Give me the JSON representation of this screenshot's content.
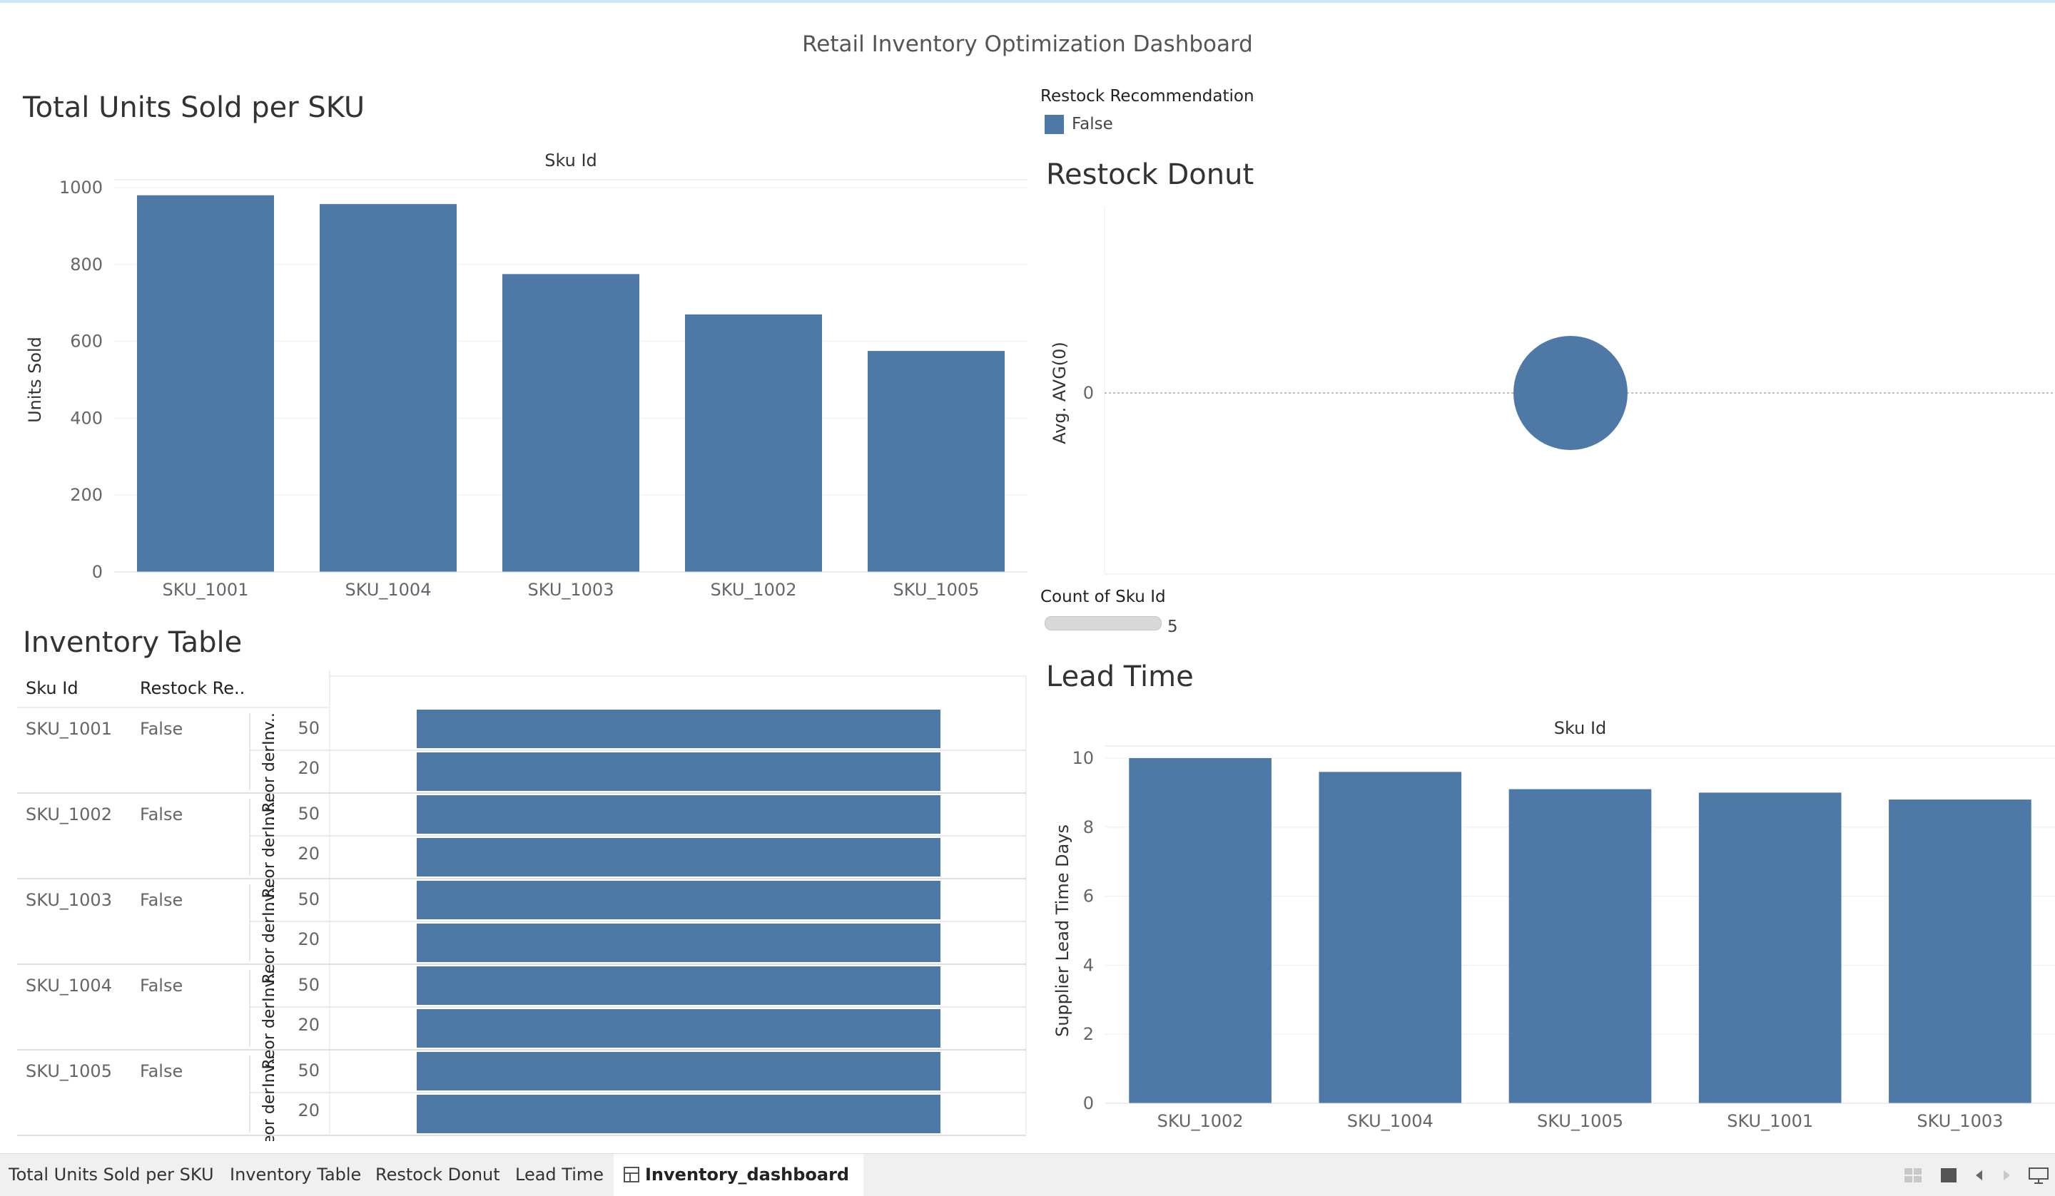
{
  "dashboard": {
    "title": "Retail Inventory Optimization Dashboard"
  },
  "sheets": {
    "units": {
      "title": "Total Units Sold per SKU"
    },
    "donut": {
      "title": "Restock Donut"
    },
    "table": {
      "title": "Inventory Table"
    },
    "lead": {
      "title": "Lead Time"
    }
  },
  "legend": {
    "color_title": "Restock Recommendation",
    "color_item": "False",
    "color_hex": "#4e79a7",
    "size_title": "Count of Sku Id",
    "size_value": "5"
  },
  "chart_data": [
    {
      "type": "bar",
      "title": "Total Units Sold per SKU",
      "xlabel": "Sku Id",
      "ylabel": "Units Sold",
      "categories": [
        "SKU_1001",
        "SKU_1004",
        "SKU_1003",
        "SKU_1002",
        "SKU_1005"
      ],
      "values": [
        980,
        957,
        775,
        670,
        575
      ],
      "ylim": [
        0,
        1000
      ],
      "yticks": [
        "0",
        "200",
        "400",
        "600",
        "800",
        "1000"
      ],
      "grid": true
    },
    {
      "type": "scatter",
      "title": "Restock Donut",
      "ylabel": "Avg. AVG(0)",
      "yticks": [
        "0"
      ],
      "points": [
        {
          "y": 0,
          "count": 5
        }
      ],
      "grid": true
    },
    {
      "type": "bar",
      "title": "Lead Time",
      "xlabel": "Sku Id",
      "ylabel": "Supplier Lead Time Days",
      "categories": [
        "SKU_1002",
        "SKU_1004",
        "SKU_1005",
        "SKU_1001",
        "SKU_1003"
      ],
      "values": [
        10,
        9.6,
        9.1,
        9.0,
        8.8
      ],
      "ylim": [
        0,
        10
      ],
      "yticks": [
        "0",
        "2",
        "4",
        "6",
        "8",
        "10"
      ],
      "grid": true
    }
  ],
  "table": {
    "headers": [
      "Sku Id",
      "Restock Re.."
    ],
    "measure_labels": [
      "Inv..",
      "Reor der .."
    ],
    "rows": [
      {
        "sku": "SKU_1001",
        "restock": "False",
        "inv": "50",
        "reorder": "20"
      },
      {
        "sku": "SKU_1002",
        "restock": "False",
        "inv": "50",
        "reorder": "20"
      },
      {
        "sku": "SKU_1003",
        "restock": "False",
        "inv": "50",
        "reorder": "20"
      },
      {
        "sku": "SKU_1004",
        "restock": "False",
        "inv": "50",
        "reorder": "20"
      },
      {
        "sku": "SKU_1005",
        "restock": "False",
        "inv": "50",
        "reorder": "20"
      }
    ]
  },
  "tabs": [
    {
      "label": "Total Units Sold per SKU",
      "active": false
    },
    {
      "label": "Inventory Table",
      "active": false
    },
    {
      "label": "Restock Donut",
      "active": false
    },
    {
      "label": "Lead Time",
      "active": false
    },
    {
      "label": "Inventory_dashboard",
      "active": true,
      "icon": "dashboard-grid-icon"
    }
  ],
  "tabbar_icons": [
    "show-sheets-icon",
    "filmstrip-icon",
    "prev-sheet-icon",
    "next-sheet-icon",
    "presentation-mode-icon"
  ]
}
